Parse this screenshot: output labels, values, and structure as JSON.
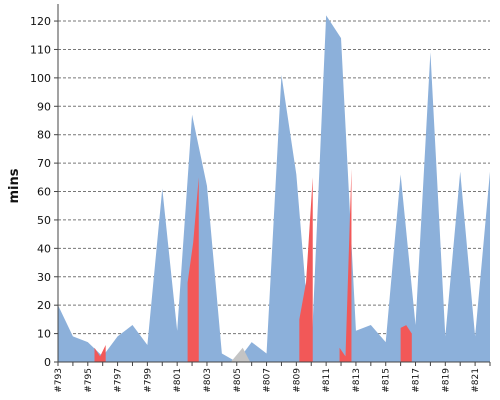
{
  "chart_data": {
    "type": "area",
    "xlabel": "",
    "ylabel": "mins",
    "ylim": [
      0,
      126
    ],
    "yticks": [
      0,
      10,
      20,
      30,
      40,
      50,
      60,
      70,
      80,
      90,
      100,
      110,
      120
    ],
    "grid": "horizontal-dashed",
    "x": [
      "#793",
      "#794",
      "#795",
      "#796",
      "#797",
      "#798",
      "#799",
      "#800",
      "#801",
      "#802",
      "#803",
      "#804",
      "#805",
      "#806",
      "#807",
      "#808",
      "#809",
      "#810",
      "#811",
      "#812",
      "#813",
      "#814",
      "#815",
      "#816",
      "#817",
      "#818",
      "#819",
      "#820",
      "#821",
      "#822"
    ],
    "xticklabels": [
      "#793",
      "#795",
      "#797",
      "#799",
      "#801",
      "#803",
      "#805",
      "#807",
      "#809",
      "#811",
      "#813",
      "#815",
      "#817",
      "#819",
      "#821"
    ],
    "values": [
      20,
      9,
      7,
      2,
      9,
      13,
      6,
      61,
      11,
      87,
      62,
      3,
      0,
      7,
      3,
      101,
      66,
      2,
      122,
      114,
      11,
      13,
      7,
      66,
      13,
      109,
      9,
      67,
      9,
      67
    ],
    "series": [
      {
        "name": "",
        "color": "#8cb0da"
      },
      {
        "name": "",
        "color": "#f25858"
      },
      {
        "name": "",
        "color": "#c4c4c4"
      }
    ],
    "red_segments": [
      {
        "from": 2.45,
        "to": 3.2,
        "top": [
          5,
          2,
          6
        ]
      },
      {
        "from": 8.7,
        "to": 9.45,
        "top": [
          28,
          42,
          65
        ]
      },
      {
        "from": 16.2,
        "to": 17.1,
        "top": [
          15,
          28,
          65
        ]
      },
      {
        "from": 18.9,
        "to": 19.7,
        "top": [
          5,
          2,
          68
        ]
      },
      {
        "from": 23.0,
        "to": 23.75,
        "top": [
          12,
          13,
          10
        ]
      }
    ]
  }
}
